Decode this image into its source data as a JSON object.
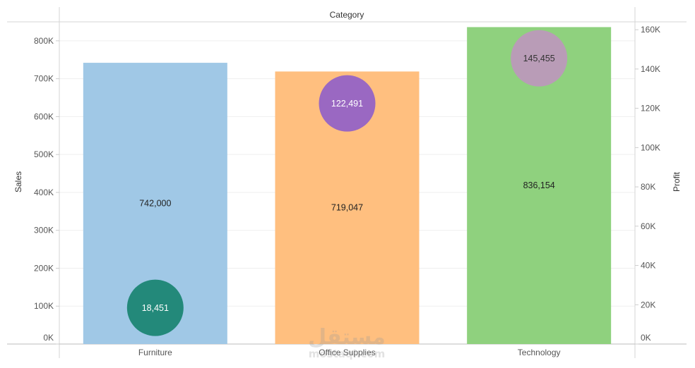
{
  "chart_data": {
    "type": "bar",
    "header": "Category",
    "categories": [
      "Furniture",
      "Office Supplies",
      "Technology"
    ],
    "left_axis": {
      "title": "Sales",
      "ylim": [
        0,
        850000
      ],
      "ticks": [
        0,
        100000,
        200000,
        300000,
        400000,
        500000,
        600000,
        700000,
        800000
      ],
      "tick_labels": [
        "0K",
        "100K",
        "200K",
        "300K",
        "400K",
        "500K",
        "600K",
        "700K",
        "800K"
      ]
    },
    "right_axis": {
      "title": "Profit",
      "ylim": [
        0,
        164000
      ],
      "ticks": [
        0,
        20000,
        40000,
        60000,
        80000,
        100000,
        120000,
        140000,
        160000
      ],
      "tick_labels": [
        "0K",
        "20K",
        "40K",
        "60K",
        "80K",
        "100K",
        "120K",
        "140K",
        "160K"
      ]
    },
    "series": [
      {
        "name": "Sales",
        "mark": "bar",
        "axis": "left",
        "values": [
          742000,
          719047,
          836154
        ],
        "labels": [
          "742,000",
          "719,047",
          "836,154"
        ],
        "colors": [
          "#a0c8e6",
          "#ffbf7f",
          "#8fd17e"
        ]
      },
      {
        "name": "Profit",
        "mark": "circle",
        "axis": "right",
        "values": [
          18451,
          122491,
          145455
        ],
        "labels": [
          "18,451",
          "122,491",
          "145,455"
        ],
        "colors": [
          "#23897a",
          "#9a68c2",
          "#b99cb7"
        ],
        "label_colors": [
          "#ffffff",
          "#ffffff",
          "#333333"
        ]
      }
    ],
    "grid": true
  },
  "watermark": {
    "arabic": "مستقل",
    "latin": "mostaql.com"
  }
}
